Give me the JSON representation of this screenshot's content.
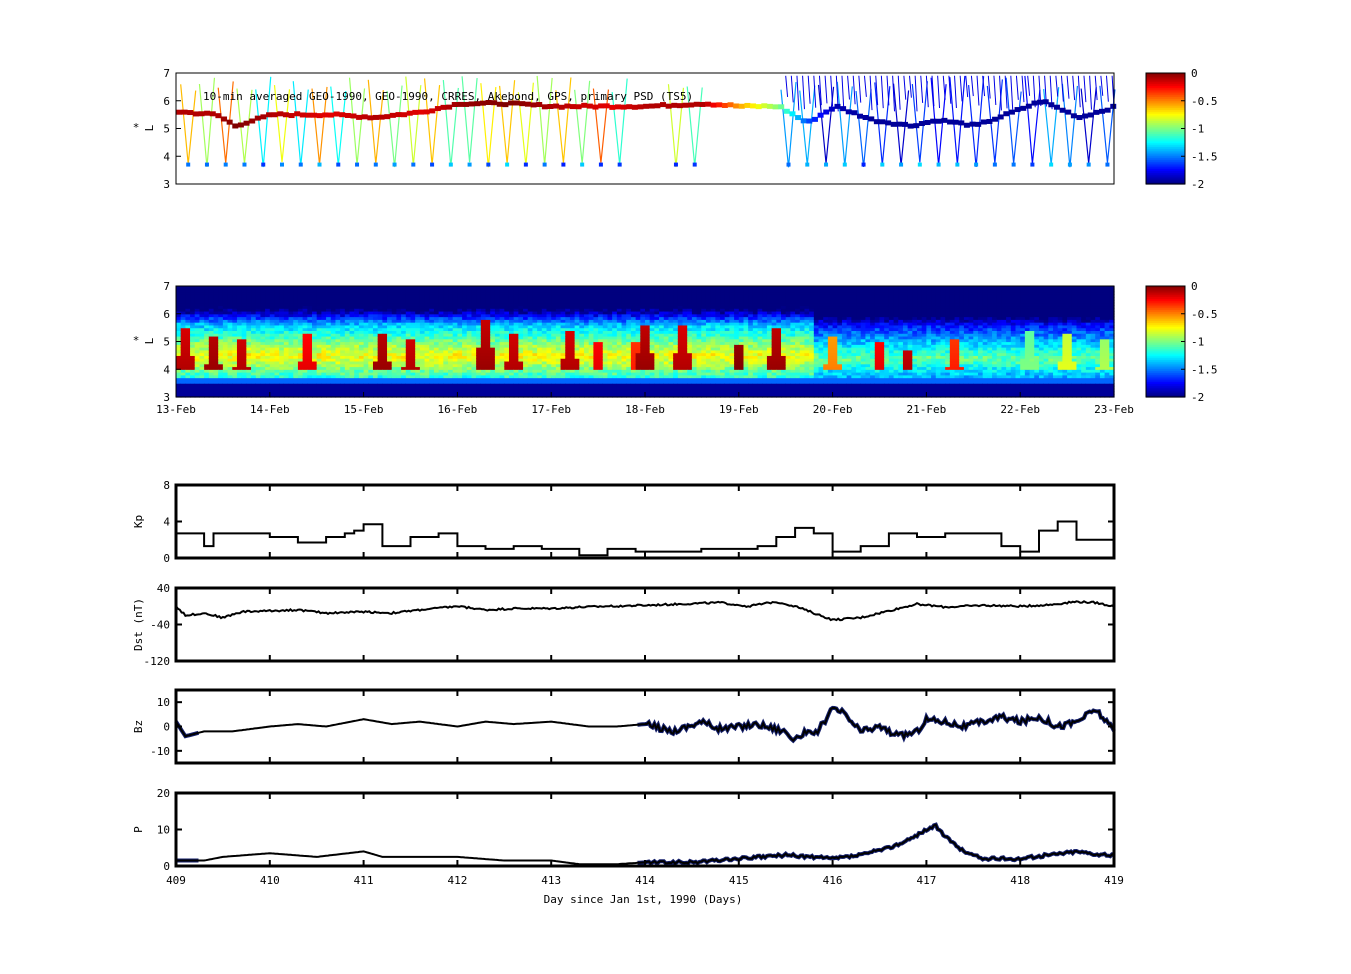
{
  "colors": {
    "background": "#ffffff",
    "axis": "#000000",
    "line_black": "#000000",
    "line_blue": "#141f6b",
    "colormap": [
      "#00007f",
      "#0000ff",
      "#007fff",
      "#00ffff",
      "#7fff7f",
      "#ffff00",
      "#ff7f00",
      "#ff0000",
      "#7f0000"
    ]
  },
  "chart_data": [
    {
      "type": "heatmap",
      "panel": "observed-psd",
      "annotation": "10-min averaged GEO-1990, GEO-1990, CRRES, Akebond, GPS, primary PSD (TS5)",
      "ylabel_line1": "*",
      "ylabel_line2": "L",
      "ylim": [
        3,
        7
      ],
      "yticks": [
        "3",
        "4",
        "5",
        "6",
        "7"
      ],
      "xlim": [
        409,
        419
      ],
      "colorbar": {
        "min": -2,
        "max": 0,
        "ticks": [
          "0",
          "-0.5",
          "-1",
          "-1.5",
          "-2"
        ]
      },
      "main_track": {
        "x": [
          409.0,
          409.4,
          409.6,
          410.0,
          410.6,
          411.1,
          411.6,
          412.0,
          412.5,
          413.0,
          413.6,
          414.0,
          414.6,
          415.0,
          415.4,
          415.7,
          416.0,
          416.4,
          416.8,
          417.1,
          417.5,
          417.9,
          418.2,
          418.6,
          419.0
        ],
        "y": [
          5.6,
          5.5,
          5.1,
          5.5,
          5.5,
          5.4,
          5.6,
          5.9,
          5.9,
          5.8,
          5.8,
          5.8,
          5.9,
          5.8,
          5.8,
          5.2,
          5.8,
          5.3,
          5.1,
          5.3,
          5.1,
          5.6,
          6.0,
          5.4,
          5.8
        ],
        "z": [
          -0.1,
          -0.1,
          0.0,
          -0.1,
          -0.2,
          -0.1,
          -0.2,
          -0.05,
          0.0,
          -0.1,
          -0.2,
          -0.1,
          -0.1,
          -0.6,
          -1.0,
          -1.6,
          -1.9,
          -1.95,
          -1.95,
          -1.95,
          -1.95,
          -1.95,
          -1.95,
          -1.95,
          -1.95
        ]
      }
    },
    {
      "type": "heatmap",
      "panel": "reanalysis-psd",
      "ylabel_line1": "*",
      "ylabel_line2": "L",
      "ylim": [
        3,
        7
      ],
      "yticks": [
        "3",
        "4",
        "5",
        "6",
        "7"
      ],
      "x_tick_labels": [
        "13-Feb",
        "14-Feb",
        "15-Feb",
        "16-Feb",
        "17-Feb",
        "18-Feb",
        "19-Feb",
        "20-Feb",
        "21-Feb",
        "22-Feb",
        "23-Feb"
      ],
      "colorbar": {
        "min": -2,
        "max": 0,
        "ticks": [
          "0",
          "-0.5",
          "-1",
          "-1.5",
          "-2"
        ]
      },
      "peaks": {
        "x": [
          409.1,
          409.4,
          409.7,
          410.4,
          411.2,
          411.5,
          412.3,
          412.6,
          413.2,
          413.5,
          413.9,
          414.0,
          414.4,
          415.0,
          415.4,
          416.0,
          416.5,
          416.8,
          417.3,
          418.1,
          418.5,
          418.9
        ],
        "l_peak": [
          5.1,
          4.8,
          4.7,
          4.9,
          4.9,
          4.7,
          5.4,
          4.9,
          5.0,
          4.6,
          4.6,
          5.2,
          5.2,
          4.5,
          5.1,
          4.8,
          4.6,
          4.3,
          4.7,
          5.0,
          4.9,
          4.7
        ],
        "z": [
          -0.1,
          -0.05,
          -0.1,
          -0.2,
          -0.05,
          -0.1,
          -0.05,
          -0.1,
          -0.1,
          -0.2,
          -0.3,
          -0.05,
          -0.1,
          0.0,
          -0.05,
          -0.5,
          -0.2,
          -0.1,
          -0.3,
          -1.0,
          -0.8,
          -0.9
        ]
      }
    },
    {
      "type": "line",
      "panel": "kp",
      "ylabel": "Kp",
      "ylim": [
        0,
        8
      ],
      "yticks": [
        "0",
        "4",
        "8"
      ],
      "series": [
        {
          "x": [
            409.0,
            409.2,
            409.3,
            409.4,
            409.7,
            410.0,
            410.3,
            410.6,
            410.8,
            410.9,
            411.0,
            411.1,
            411.2,
            411.5,
            411.8,
            412.0,
            412.3,
            412.6,
            412.9,
            413.1,
            413.3,
            413.6,
            413.9,
            414.2,
            414.6,
            414.9,
            415.2,
            415.4,
            415.6,
            415.8,
            416.0,
            416.3,
            416.6,
            416.9,
            417.2,
            417.5,
            417.8,
            418.0,
            418.2,
            418.4,
            418.6,
            418.9,
            419.0
          ],
          "y": [
            2.7,
            2.7,
            1.3,
            2.7,
            2.7,
            2.3,
            1.7,
            2.3,
            2.7,
            3.0,
            3.7,
            3.7,
            1.3,
            2.3,
            2.7,
            1.3,
            1.0,
            1.3,
            1.0,
            1.0,
            0.3,
            1.0,
            0.7,
            0.7,
            1.0,
            1.0,
            1.3,
            2.3,
            3.3,
            2.7,
            0.7,
            1.3,
            2.7,
            2.3,
            2.7,
            2.7,
            1.3,
            0.7,
            3.0,
            4.0,
            2.0,
            2.0,
            4.0
          ]
        }
      ]
    },
    {
      "type": "line",
      "panel": "dst",
      "ylabel": "Dst (nT)",
      "ylim": [
        -120,
        40
      ],
      "yticks": [
        "-120",
        "-40",
        "40"
      ],
      "series": [
        {
          "x": [
            409.0,
            409.1,
            409.3,
            409.5,
            409.7,
            410.0,
            410.3,
            410.6,
            411.0,
            411.3,
            411.6,
            412.0,
            412.3,
            412.6,
            413.0,
            413.3,
            413.6,
            414.0,
            414.4,
            414.8,
            415.1,
            415.4,
            415.6,
            415.8,
            416.0,
            416.3,
            416.6,
            416.9,
            417.2,
            417.6,
            418.0,
            418.3,
            418.6,
            418.8,
            419.0
          ],
          "y": [
            0,
            -20,
            -15,
            -25,
            -12,
            -10,
            -8,
            -15,
            -12,
            -15,
            -8,
            0,
            -8,
            -5,
            -5,
            -2,
            0,
            2,
            5,
            8,
            0,
            10,
            0,
            -15,
            -30,
            -25,
            -10,
            5,
            -2,
            2,
            0,
            3,
            10,
            8,
            0
          ]
        }
      ]
    },
    {
      "type": "line",
      "panel": "bz",
      "ylabel": "Bz",
      "ylim": [
        -15,
        15
      ],
      "yticks": [
        "-10",
        "0",
        "10"
      ],
      "series": [
        {
          "x": [
            409.0,
            409.1,
            409.3,
            409.6,
            410.0,
            410.3,
            410.6,
            411.0,
            411.3,
            411.6,
            412.0,
            412.3,
            412.6,
            413.0,
            413.4,
            413.7,
            414.0,
            414.3,
            414.6,
            414.8,
            415.0,
            415.2,
            415.5,
            415.6,
            415.7,
            415.8,
            416.0,
            416.1,
            416.3,
            416.5,
            416.7,
            416.9,
            417.0,
            417.2,
            417.4,
            417.6,
            417.8,
            418.0,
            418.2,
            418.4,
            418.6,
            418.8,
            418.9,
            419.0
          ],
          "y": [
            2,
            -4,
            -2,
            -2,
            0,
            1,
            0,
            3,
            1,
            2,
            0,
            2,
            1,
            2,
            0,
            0,
            1,
            -2,
            2,
            -1,
            0,
            1,
            -2,
            -6,
            -2,
            -4,
            7,
            6,
            -2,
            0,
            -4,
            -2,
            3,
            2,
            0,
            2,
            4,
            2,
            4,
            0,
            2,
            7,
            3,
            -2
          ]
        }
      ]
    },
    {
      "type": "line",
      "panel": "p",
      "ylabel": "P",
      "ylabel_full": "P",
      "ylim": [
        0,
        20
      ],
      "yticks": [
        "0",
        "10",
        "20"
      ],
      "xlabel": "Day since Jan 1st, 1990 (Days)",
      "x_tick_labels": [
        "409",
        "410",
        "411",
        "412",
        "413",
        "414",
        "415",
        "416",
        "417",
        "418",
        "419"
      ],
      "series": [
        {
          "x": [
            409.0,
            409.3,
            409.5,
            410.0,
            410.5,
            411.0,
            411.2,
            411.5,
            412.0,
            412.5,
            413.0,
            413.3,
            413.7,
            414.0,
            414.5,
            415.0,
            415.5,
            416.0,
            416.3,
            416.6,
            416.8,
            417.0,
            417.1,
            417.2,
            417.4,
            417.6,
            417.8,
            418.0,
            418.3,
            418.6,
            418.9,
            419.0
          ],
          "y": [
            1.5,
            1.5,
            2.5,
            3.5,
            2.5,
            4.0,
            2.5,
            2.5,
            2.5,
            1.5,
            1.5,
            0.5,
            0.5,
            1.0,
            1.0,
            2.0,
            3.0,
            2.0,
            3.0,
            5.0,
            7.0,
            10.0,
            11.0,
            8.0,
            4.0,
            2.0,
            2.0,
            2.0,
            3.0,
            4.0,
            3.0,
            3.0
          ]
        }
      ]
    }
  ]
}
